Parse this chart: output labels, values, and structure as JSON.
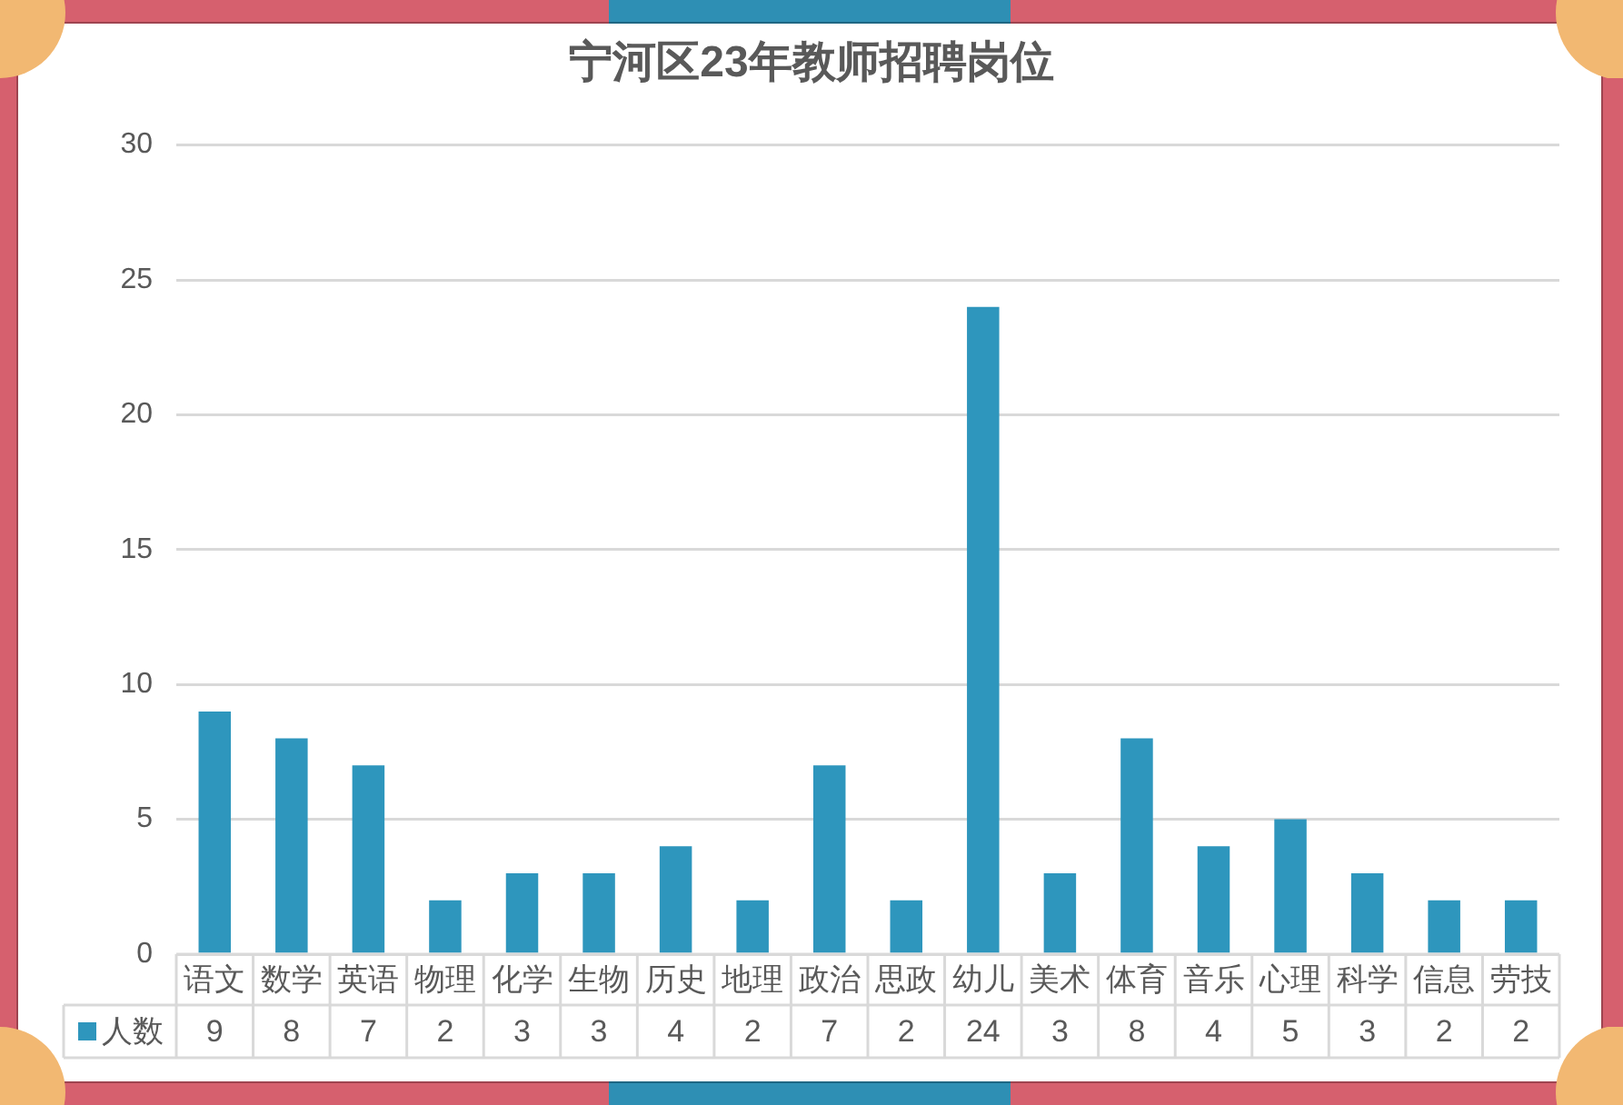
{
  "chart_data": {
    "type": "bar",
    "title": "宁河区23年教师招聘岗位",
    "categories": [
      "语文",
      "数学",
      "英语",
      "物理",
      "化学",
      "生物",
      "历史",
      "地理",
      "政治",
      "思政",
      "幼儿",
      "美术",
      "体育",
      "音乐",
      "心理",
      "科学",
      "信息",
      "劳技"
    ],
    "series": [
      {
        "name": "人数",
        "color": "#2e96bd",
        "values": [
          9,
          8,
          7,
          2,
          3,
          3,
          4,
          2,
          7,
          2,
          24,
          3,
          8,
          4,
          5,
          3,
          2,
          2
        ]
      }
    ],
    "ylim": [
      0,
      30
    ],
    "yticks": [
      0,
      5,
      10,
      15,
      20,
      25,
      30
    ],
    "grid": "y",
    "legend": "bottom",
    "data_labels": true
  }
}
